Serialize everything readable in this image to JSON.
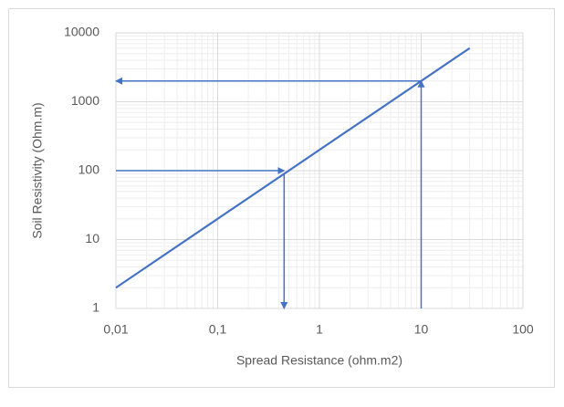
{
  "chart_data": {
    "type": "line",
    "x_label": "Spread Resistance (ohm.m2)",
    "y_label": "Soil Resistivity (Ohm.m)",
    "xscale": "log",
    "yscale": "log",
    "xlim": [
      0.01,
      100
    ],
    "xticks": [
      {
        "value": 0.01,
        "label": "0,01"
      },
      {
        "value": 0.1,
        "label": "0,1"
      },
      1,
      10,
      100
    ],
    "ylim": [
      1,
      10000
    ],
    "yticks": [
      1,
      10,
      100,
      1000,
      10000
    ],
    "grid": true,
    "minor_grid": true,
    "series": [
      {
        "color": "#4472c4",
        "x": [
          0.01,
          30
        ],
        "values": [
          2,
          6000
        ]
      }
    ],
    "arrows": [
      {
        "color": "#4472c4",
        "x": [
          0.01,
          0.45
        ],
        "values": [
          100,
          100
        ]
      },
      {
        "color": "#4472c4",
        "x": [
          0.45,
          0.45
        ],
        "values": [
          90,
          1
        ]
      },
      {
        "color": "#4472c4",
        "x": [
          10,
          10
        ],
        "values": [
          1,
          2000
        ]
      },
      {
        "color": "#4472c4",
        "x": [
          10,
          0.01
        ],
        "values": [
          2000,
          2000
        ]
      }
    ]
  }
}
